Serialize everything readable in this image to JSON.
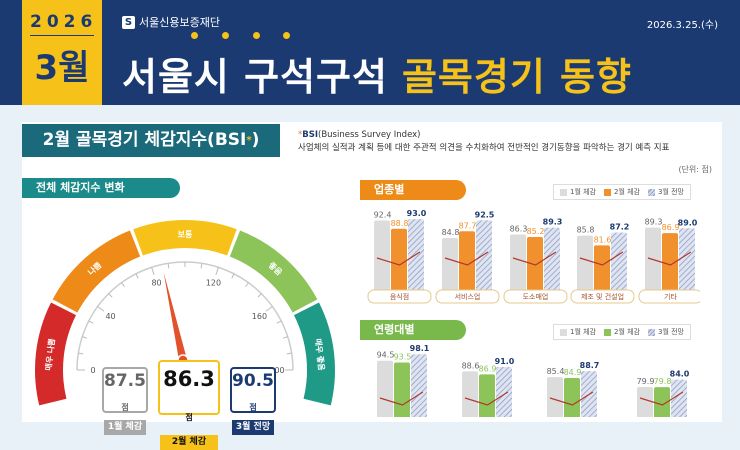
{
  "header": {
    "year": "2026",
    "month": "3월",
    "org": "서울신용보증재단",
    "date": "2026.3.25.(수)",
    "title_white": "서울시 구석구석",
    "title_yellow": "골목경기 동향"
  },
  "section": {
    "title": "2월 골목경기 체감지수(BSI",
    "title_mark": "*",
    "title_close": ")",
    "def_mark": "*",
    "def_term": "BSI",
    "def_term_full": "(Business Survey Index)",
    "def_text": "사업체의 실적과 계획 등에 대한 주관적 의견을 수치화하여 전반적인 경기동향을 파악하는 경기 예측 지표",
    "unit": "(단위: 점)"
  },
  "gauge": {
    "title": "전체 체감지수 변화",
    "min": 0,
    "max": 200,
    "ticks": [
      "0",
      "40",
      "80",
      "120",
      "160",
      "200"
    ],
    "bands": [
      {
        "label": "매우 나쁨",
        "color": "#d42a2a"
      },
      {
        "label": "나쁨",
        "color": "#ee8a17"
      },
      {
        "label": "보통",
        "color": "#f6c21a"
      },
      {
        "label": "좋음",
        "color": "#8cc45a"
      },
      {
        "label": "매우 좋음",
        "color": "#1f9a86"
      }
    ],
    "needle_value": 86.3,
    "cards": [
      {
        "value": "87.5",
        "suffix": "점",
        "label": "1월 체감",
        "color": "#a8a8a8"
      },
      {
        "value": "86.3",
        "suffix": "점",
        "label": "2월 체감",
        "color": "#f6c21a"
      },
      {
        "value": "90.5",
        "suffix": "점",
        "label": "3월 전망",
        "color": "#1c3a72"
      }
    ]
  },
  "legend": [
    "1월 체감",
    "2월 체감",
    "3월 전망"
  ],
  "chart_data": [
    {
      "type": "bar",
      "title": "업종별",
      "categories": [
        "음식점",
        "서비스업",
        "도소매업",
        "제조 및 건설업",
        "기타"
      ],
      "series": [
        {
          "name": "1월 체감",
          "values": [
            92.4,
            84.8,
            86.3,
            85.8,
            89.3
          ]
        },
        {
          "name": "2월 체감",
          "values": [
            88.8,
            87.7,
            85.2,
            81.6,
            86.9
          ]
        },
        {
          "name": "3월 전망",
          "values": [
            93.0,
            92.5,
            89.3,
            87.2,
            89.0
          ]
        }
      ],
      "colors": [
        "#dcdcdc",
        "#f0912e",
        "#hatch"
      ]
    },
    {
      "type": "bar",
      "title": "연령대별",
      "categories": [
        "",
        "",
        "",
        ""
      ],
      "series": [
        {
          "name": "1월 체감",
          "values": [
            94.5,
            88.6,
            85.4,
            79.9
          ]
        },
        {
          "name": "2월 체감",
          "values": [
            93.5,
            86.9,
            84.9,
            79.8
          ]
        },
        {
          "name": "3월 전망",
          "values": [
            98.1,
            91.0,
            88.7,
            84.0
          ]
        }
      ],
      "colors": [
        "#dcdcdc",
        "#8cc45a",
        "#hatch"
      ]
    }
  ],
  "colors": {
    "navy": "#1c3a72",
    "yellow": "#f6c21a",
    "teal": "#1a6a7b",
    "orange": "#ee8a17",
    "green": "#79b84a"
  }
}
